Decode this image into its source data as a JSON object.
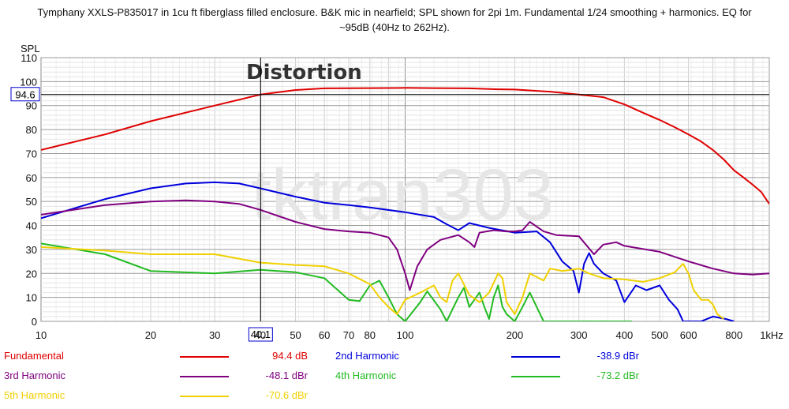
{
  "title_line1": "Tymphany XXLS-P835017 in 1cu ft fiberglass filled enclosure. B&K mic in nearfield; SPL shown for 2pi 1m. Fundamental 1/24 smoothing + harmonics. EQ for",
  "title_line2": "~95dB (40Hz to 262Hz).",
  "chart_data": {
    "type": "line",
    "title": "Tymphany XXLS-P835017 in 1cu ft fiberglass filled enclosure. B&K mic in nearfield; SPL shown for 2pi 1m. Fundamental 1/24 smoothing + harmonics. EQ for ~95dB (40Hz to 262Hz).",
    "annotation": "Distortion",
    "watermark": "tktran303",
    "ylabel": "SPL",
    "xscale": "log",
    "xlim": [
      10,
      1000
    ],
    "ylim": [
      0,
      110
    ],
    "x_tick_labels": [
      "10",
      "20",
      "30",
      "40",
      "50",
      "60",
      "70",
      "80",
      "100",
      "200",
      "300",
      "400",
      "500",
      "600",
      "800",
      "1kHz"
    ],
    "y_tick_labels": [
      "0",
      "10",
      "20",
      "30",
      "40",
      "50",
      "60",
      "70",
      "80",
      "90",
      "100",
      "110"
    ],
    "cursor": {
      "x_label": "40.1",
      "y_label": "94.6"
    },
    "grid": true,
    "series": [
      {
        "name": "Fundamental",
        "color": "#e00000",
        "legend_value": "94.4 dB",
        "points": [
          [
            10,
            71.5
          ],
          [
            15,
            78
          ],
          [
            20,
            83.5
          ],
          [
            30,
            90
          ],
          [
            40,
            94.6
          ],
          [
            50,
            96.5
          ],
          [
            60,
            97.2
          ],
          [
            80,
            97.3
          ],
          [
            100,
            97.4
          ],
          [
            120,
            97.3
          ],
          [
            150,
            97.2
          ],
          [
            180,
            96.8
          ],
          [
            200,
            96.7
          ],
          [
            250,
            95.8
          ],
          [
            300,
            94.6
          ],
          [
            350,
            93.5
          ],
          [
            400,
            90.5
          ],
          [
            450,
            87
          ],
          [
            500,
            84
          ],
          [
            550,
            81
          ],
          [
            600,
            78
          ],
          [
            650,
            75
          ],
          [
            700,
            71.5
          ],
          [
            750,
            67.5
          ],
          [
            800,
            63
          ],
          [
            850,
            60
          ],
          [
            900,
            57
          ],
          [
            950,
            54
          ],
          [
            1000,
            49
          ]
        ]
      },
      {
        "name": "2nd Harmonic",
        "color": "#0000dd",
        "legend_value": "-38.9 dBr",
        "points": [
          [
            10,
            43
          ],
          [
            15,
            51
          ],
          [
            20,
            55.5
          ],
          [
            25,
            57.5
          ],
          [
            30,
            58
          ],
          [
            35,
            57.5
          ],
          [
            40,
            55.5
          ],
          [
            50,
            52
          ],
          [
            60,
            49.5
          ],
          [
            70,
            48.5
          ],
          [
            80,
            47.5
          ],
          [
            100,
            45.5
          ],
          [
            120,
            43.5
          ],
          [
            130,
            40.5
          ],
          [
            140,
            38
          ],
          [
            150,
            41
          ],
          [
            170,
            39
          ],
          [
            200,
            37
          ],
          [
            230,
            37.5
          ],
          [
            250,
            33
          ],
          [
            270,
            25
          ],
          [
            290,
            21
          ],
          [
            300,
            12
          ],
          [
            310,
            24
          ],
          [
            320,
            28.5
          ],
          [
            330,
            24
          ],
          [
            350,
            20
          ],
          [
            380,
            17
          ],
          [
            400,
            8
          ],
          [
            430,
            15
          ],
          [
            460,
            13
          ],
          [
            500,
            15
          ],
          [
            530,
            9
          ],
          [
            560,
            5
          ],
          [
            580,
            0
          ],
          [
            650,
            0
          ],
          [
            700,
            2
          ],
          [
            760,
            1
          ],
          [
            800,
            0
          ]
        ]
      },
      {
        "name": "3rd Harmonic",
        "color": "#800080",
        "legend_value": "-48.1 dBr",
        "points": [
          [
            10,
            44.5
          ],
          [
            15,
            48.5
          ],
          [
            20,
            50
          ],
          [
            25,
            50.5
          ],
          [
            30,
            50
          ],
          [
            35,
            49
          ],
          [
            40,
            46.5
          ],
          [
            50,
            41.5
          ],
          [
            60,
            38.5
          ],
          [
            70,
            37.5
          ],
          [
            80,
            37
          ],
          [
            90,
            35
          ],
          [
            95,
            30
          ],
          [
            100,
            20
          ],
          [
            103,
            13
          ],
          [
            108,
            23
          ],
          [
            115,
            30
          ],
          [
            125,
            34
          ],
          [
            140,
            36
          ],
          [
            150,
            33
          ],
          [
            155,
            31
          ],
          [
            160,
            37
          ],
          [
            175,
            38
          ],
          [
            190,
            37.5
          ],
          [
            200,
            37.5
          ],
          [
            210,
            38
          ],
          [
            220,
            41.5
          ],
          [
            240,
            37.5
          ],
          [
            260,
            36
          ],
          [
            300,
            35.5
          ],
          [
            330,
            28
          ],
          [
            350,
            32
          ],
          [
            380,
            33
          ],
          [
            400,
            31.5
          ],
          [
            500,
            29
          ],
          [
            600,
            25
          ],
          [
            700,
            22
          ],
          [
            800,
            20
          ],
          [
            900,
            19.5
          ],
          [
            1000,
            20
          ]
        ]
      },
      {
        "name": "4th Harmonic",
        "color": "#22bb22",
        "legend_value": "-73.2 dBr",
        "points": [
          [
            10,
            32.5
          ],
          [
            15,
            28
          ],
          [
            20,
            21
          ],
          [
            30,
            20
          ],
          [
            40,
            21.5
          ],
          [
            50,
            20.5
          ],
          [
            60,
            18
          ],
          [
            70,
            9
          ],
          [
            75,
            8.5
          ],
          [
            80,
            15
          ],
          [
            85,
            17
          ],
          [
            90,
            10
          ],
          [
            95,
            3
          ],
          [
            100,
            0
          ],
          [
            110,
            8
          ],
          [
            115,
            12.5
          ],
          [
            125,
            5
          ],
          [
            130,
            0
          ],
          [
            140,
            10
          ],
          [
            145,
            14
          ],
          [
            150,
            6
          ],
          [
            160,
            12
          ],
          [
            165,
            6
          ],
          [
            170,
            1
          ],
          [
            175,
            10
          ],
          [
            180,
            15
          ],
          [
            185,
            6
          ],
          [
            190,
            3
          ],
          [
            200,
            0
          ],
          [
            210,
            6
          ],
          [
            220,
            12
          ],
          [
            240,
            0
          ],
          [
            300,
            0
          ],
          [
            360,
            0
          ],
          [
            420,
            0
          ]
        ]
      },
      {
        "name": "5th Harmonic",
        "color": "#f0d000",
        "legend_value": "-70.6 dBr",
        "points": [
          [
            10,
            31
          ],
          [
            15,
            29.5
          ],
          [
            20,
            28
          ],
          [
            30,
            28
          ],
          [
            40,
            24.5
          ],
          [
            50,
            23.5
          ],
          [
            60,
            23
          ],
          [
            70,
            20
          ],
          [
            80,
            15.5
          ],
          [
            85,
            10
          ],
          [
            90,
            6
          ],
          [
            95,
            3
          ],
          [
            100,
            9
          ],
          [
            110,
            12
          ],
          [
            120,
            15
          ],
          [
            125,
            10
          ],
          [
            130,
            8
          ],
          [
            135,
            17
          ],
          [
            140,
            20
          ],
          [
            150,
            11
          ],
          [
            160,
            8
          ],
          [
            170,
            12
          ],
          [
            180,
            20
          ],
          [
            185,
            18
          ],
          [
            190,
            8
          ],
          [
            200,
            3
          ],
          [
            210,
            10
          ],
          [
            220,
            20
          ],
          [
            240,
            17
          ],
          [
            250,
            22
          ],
          [
            270,
            21
          ],
          [
            300,
            22
          ],
          [
            320,
            20
          ],
          [
            350,
            18
          ],
          [
            400,
            17.5
          ],
          [
            450,
            16.5
          ],
          [
            500,
            18
          ],
          [
            550,
            20.5
          ],
          [
            580,
            24
          ],
          [
            600,
            20
          ],
          [
            620,
            13
          ],
          [
            650,
            9
          ],
          [
            680,
            9
          ],
          [
            700,
            7
          ],
          [
            720,
            3
          ],
          [
            750,
            1
          ]
        ]
      }
    ]
  }
}
